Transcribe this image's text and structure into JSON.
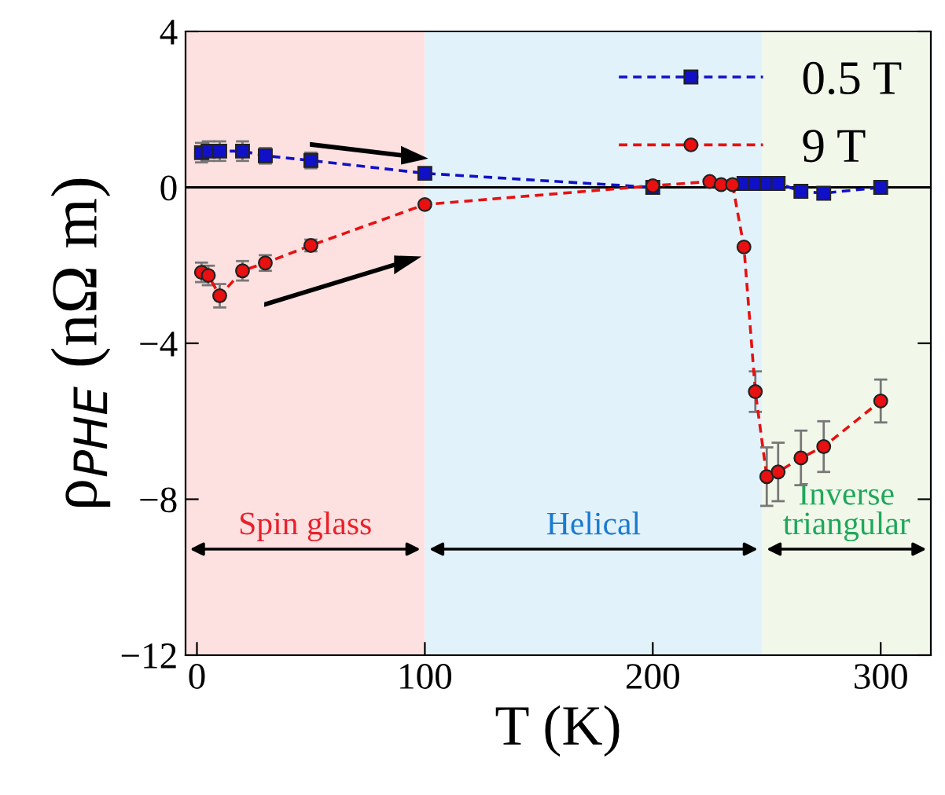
{
  "chart_data": {
    "type": "line",
    "xlabel": "T (K)",
    "ylabel": "ρ$_{PHE}$ (nΩ m)",
    "xlim": [
      -5,
      322
    ],
    "ylim": [
      -12,
      4
    ],
    "xticks": [
      0,
      100,
      200,
      300
    ],
    "yticks": [
      -12,
      -8,
      -4,
      0,
      4
    ],
    "grid": false,
    "legend": "top right",
    "line_style": "dashed",
    "series": [
      {
        "name": "0.5 T",
        "color": "#1010c8",
        "marker": "square",
        "x": [
          2,
          5,
          10,
          20,
          30,
          50,
          100,
          200,
          225,
          230,
          235,
          240,
          245,
          250,
          255,
          265,
          275,
          300
        ],
        "values": [
          0.89,
          0.93,
          0.93,
          0.93,
          0.81,
          0.69,
          0.36,
          0.0,
          null,
          null,
          null,
          0.1,
          0.1,
          0.1,
          0.1,
          -0.1,
          -0.15,
          0.0
        ],
        "errors": [
          0.25,
          0.25,
          0.25,
          0.25,
          0.2,
          0.2,
          null,
          null,
          null,
          null,
          null,
          null,
          null,
          null,
          null,
          null,
          null,
          null
        ]
      },
      {
        "name": "9 T",
        "color": "#e81010",
        "marker": "circle",
        "x": [
          2,
          5,
          10,
          20,
          30,
          50,
          100,
          200,
          225,
          230,
          235,
          240,
          245,
          250,
          255,
          265,
          275,
          300
        ],
        "values": [
          -2.18,
          -2.26,
          -2.78,
          -2.14,
          -1.94,
          -1.49,
          -0.44,
          0.04,
          0.15,
          0.07,
          0.07,
          -1.53,
          -5.24,
          -7.42,
          -7.3,
          -6.94,
          -6.65,
          -5.48
        ],
        "errors": [
          0.25,
          0.25,
          0.3,
          0.25,
          0.2,
          0.15,
          null,
          null,
          null,
          null,
          null,
          null,
          0.52,
          0.75,
          0.75,
          0.7,
          0.65,
          0.55
        ]
      }
    ],
    "ref_lines": [
      {
        "axis": "y",
        "value": 0,
        "color": "#000000"
      }
    ],
    "bands": [
      {
        "axis": "x",
        "from": -5,
        "to": 100,
        "label": "Spin glass",
        "color": "#fde0e0"
      },
      {
        "axis": "x",
        "from": 100,
        "to": 248,
        "label": "Helical",
        "color": "#e2f2fb"
      },
      {
        "axis": "x",
        "from": 248,
        "to": 322,
        "label": "Inverse\ntriangular",
        "color": "#f1f8ea"
      }
    ]
  }
}
